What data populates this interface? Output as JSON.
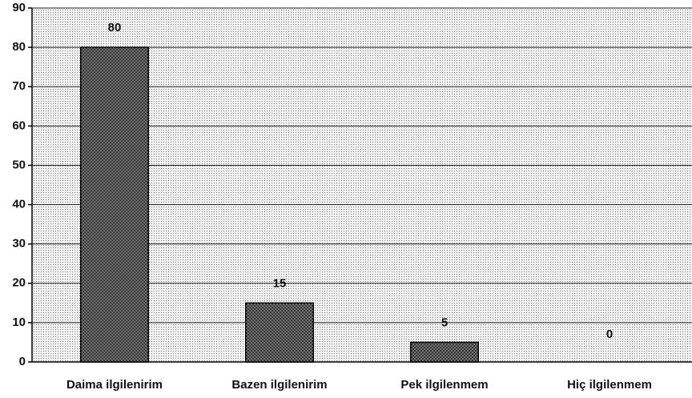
{
  "chart_data": {
    "type": "bar",
    "categories": [
      "Daima ilgilenirim",
      "Bazen ilgilenirim",
      "Pek ilgilenmem",
      "Hiç ilgilenmem"
    ],
    "values": [
      80,
      15,
      5,
      0
    ],
    "color": "#555555",
    "ylim": [
      0,
      90
    ],
    "yticks": [
      0,
      10,
      20,
      30,
      40,
      50,
      60,
      70,
      80,
      90
    ],
    "grid": true
  }
}
